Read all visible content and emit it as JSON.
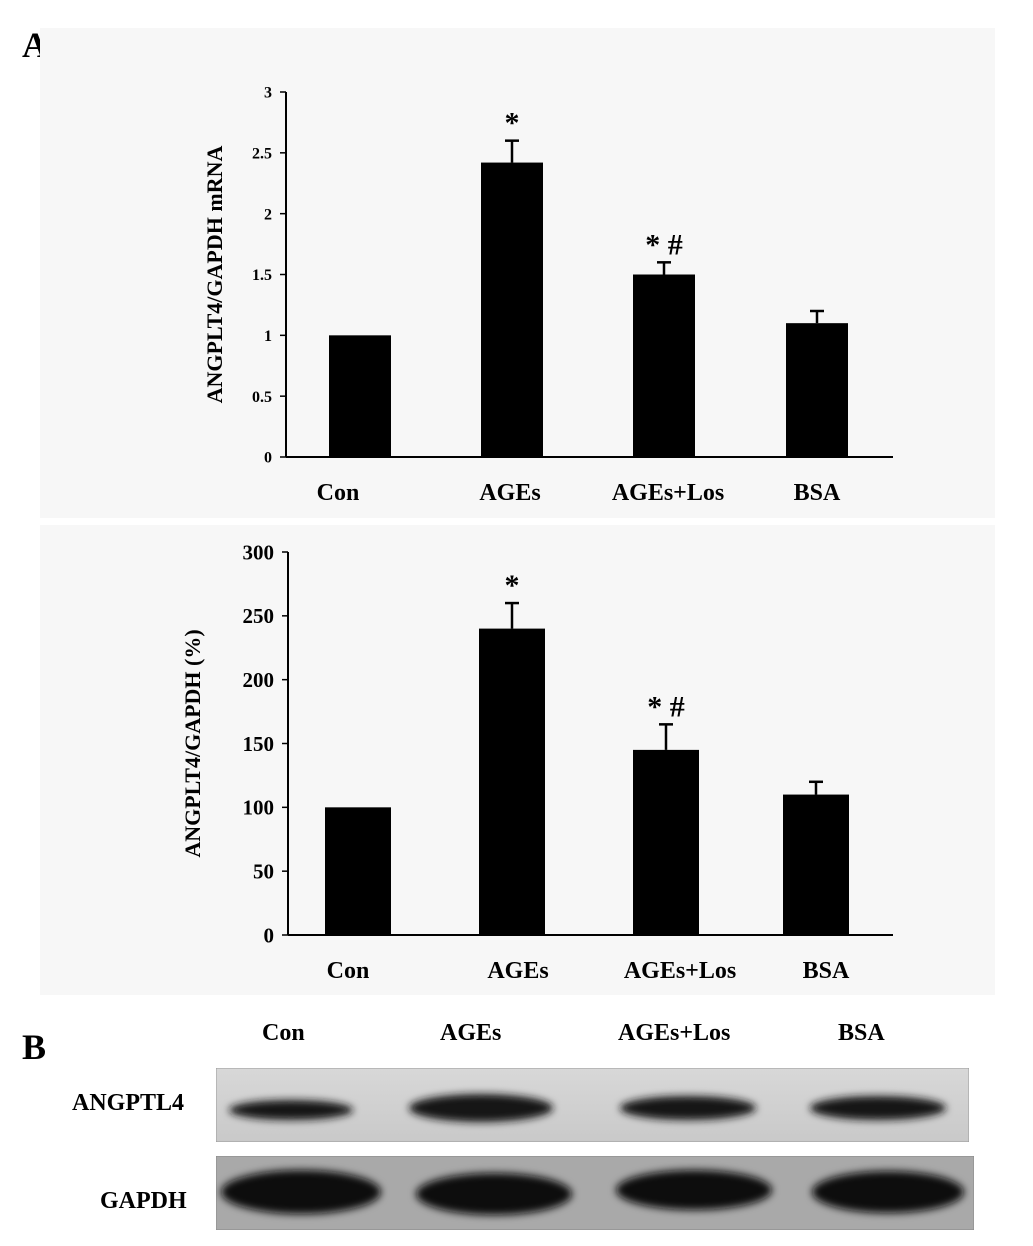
{
  "panels": {
    "a_letter": "A",
    "b_letter": "B"
  },
  "chart_data": [
    {
      "type": "bar",
      "ylabel": "ANGPLT4/GAPDH mRNA",
      "categories": [
        "Con",
        "AGEs",
        "AGEs+Los",
        "BSA"
      ],
      "values": [
        1.0,
        2.42,
        1.5,
        1.1
      ],
      "errors": [
        0,
        0.18,
        0.1,
        0.1
      ],
      "annotations": [
        "",
        "*",
        "* #",
        ""
      ],
      "ylim": [
        0,
        3
      ],
      "yticks": [
        "0",
        "0.5",
        "1",
        "1.5",
        "2",
        "2.5",
        "3"
      ],
      "grid": false,
      "bar_color": "#000000"
    },
    {
      "type": "bar",
      "ylabel": "ANGPLT4/GAPDH (%)",
      "categories": [
        "Con",
        "AGEs",
        "AGEs+Los",
        "BSA"
      ],
      "values": [
        100,
        240,
        145,
        110
      ],
      "errors": [
        0,
        20,
        20,
        10
      ],
      "annotations": [
        "",
        "*",
        "* #",
        ""
      ],
      "ylim": [
        0,
        300
      ],
      "yticks": [
        "0",
        "50",
        "100",
        "150",
        "200",
        "250",
        "300"
      ],
      "grid": false,
      "bar_color": "#000000"
    }
  ],
  "blot": {
    "lanes": [
      "Con",
      "AGEs",
      "AGEs+Los",
      "BSA"
    ],
    "rows": [
      "ANGPTL4",
      "GAPDH"
    ]
  }
}
